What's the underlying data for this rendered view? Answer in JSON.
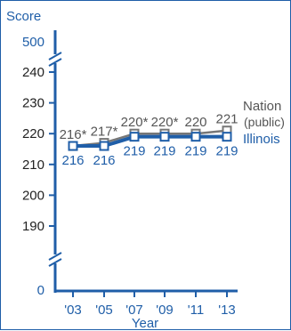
{
  "chart_data": {
    "type": "line",
    "ylabel": "Score",
    "xlabel": "Year",
    "categories": [
      "'03",
      "'05",
      "'07",
      "'09",
      "'11",
      "'13"
    ],
    "y_ticks": [
      "190",
      "200",
      "210",
      "220",
      "230",
      "240"
    ],
    "y_break_top_label": "500",
    "y_break_bottom_label": "0",
    "ylim": [
      185,
      245
    ],
    "series": [
      {
        "name": "Nation (public)",
        "values": [
          216,
          217,
          220,
          220,
          220,
          221
        ],
        "labels": [
          "216*",
          "217*",
          "220*",
          "220*",
          "220",
          "221"
        ],
        "color": "#777777"
      },
      {
        "name": "Illinois",
        "values": [
          216,
          216,
          219,
          219,
          219,
          219
        ],
        "labels": [
          "216",
          "216",
          "219",
          "219",
          "219",
          "219"
        ],
        "color": "#1f5ea8"
      }
    ],
    "legend": {
      "nation_line1": "Nation",
      "nation_line2": "(public)",
      "illinois": "Illinois"
    }
  }
}
